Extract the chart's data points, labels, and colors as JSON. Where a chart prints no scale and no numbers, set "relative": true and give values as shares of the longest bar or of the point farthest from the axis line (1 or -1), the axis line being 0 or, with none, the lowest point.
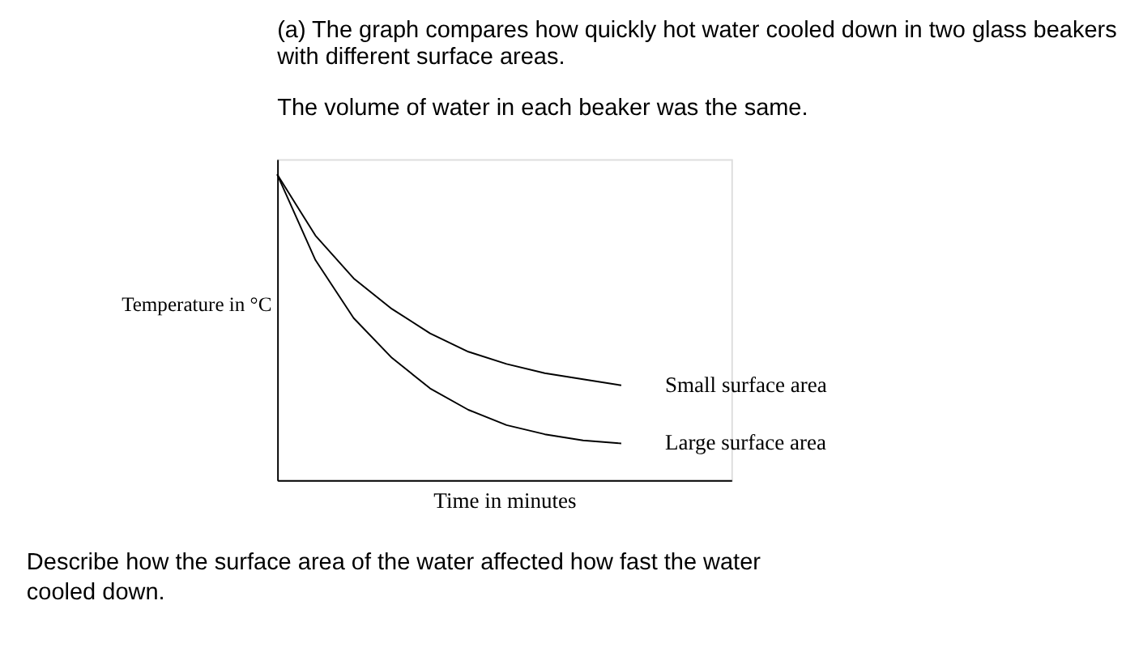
{
  "chart_data": {
    "type": "line",
    "relative": true,
    "title": "(a) The graph compares how quickly hot water cooled down in two glass beakers with different surface areas.",
    "subtitle": "The volume of water in each beaker was the same.",
    "xlabel": "Time in minutes",
    "ylabel": "Temperature in °C",
    "categories": [
      null,
      null,
      null,
      null,
      null,
      null,
      null,
      null,
      null,
      null
    ],
    "series": [
      {
        "name": "Small surface area",
        "color": "#000000",
        "values": [
          1,
          0.8,
          0.66,
          0.56,
          0.48,
          0.42,
          0.38,
          0.35,
          0.33,
          0.31
        ]
      },
      {
        "name": "Large surface area",
        "color": "#000000",
        "values": [
          1,
          0.72,
          0.53,
          0.4,
          0.3,
          0.23,
          0.18,
          0.15,
          0.13,
          0.12
        ]
      }
    ],
    "annotations": [
      "Describe how the surface area of the water affected how fast the water cooled down."
    ],
    "grid": false,
    "legend": false,
    "line_style": "solid",
    "marker": "none"
  }
}
